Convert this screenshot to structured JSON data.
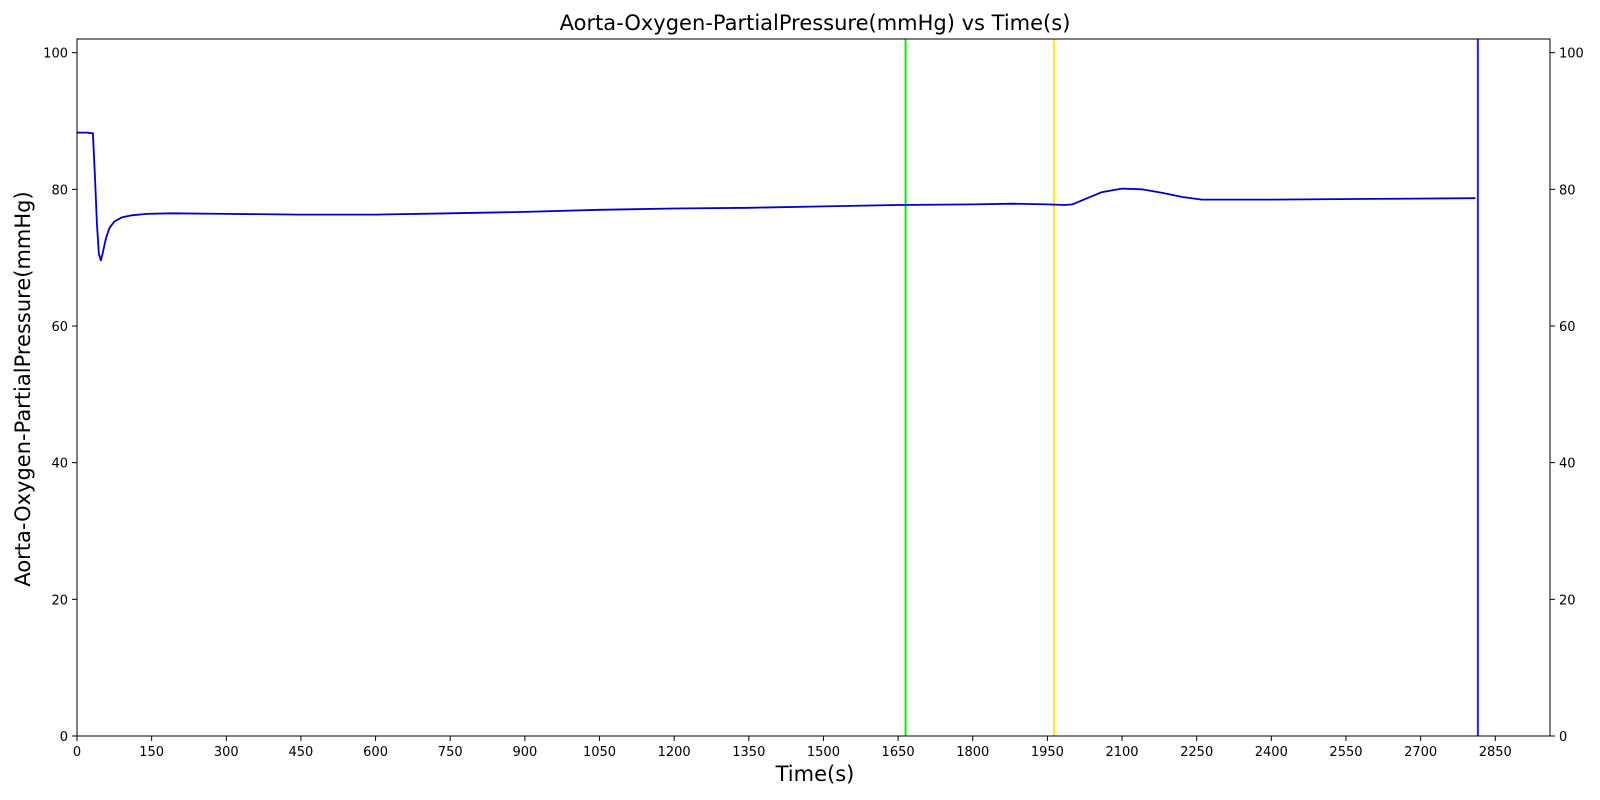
{
  "chart_data": {
    "type": "line",
    "title": "Aorta-Oxygen-PartialPressure(mmHg) vs Time(s)",
    "xlabel": "Time(s)",
    "ylabel": "Aorta-Oxygen-PartialPressure(mmHg)",
    "xlim": [
      0,
      2960
    ],
    "ylim": [
      0,
      102
    ],
    "x_ticks": [
      0,
      150,
      300,
      450,
      600,
      750,
      900,
      1050,
      1200,
      1350,
      1500,
      1650,
      1800,
      1950,
      2100,
      2250,
      2400,
      2550,
      2700,
      2850
    ],
    "y_ticks": [
      0,
      20,
      40,
      60,
      80,
      100
    ],
    "right_y_ticks": [
      0,
      20,
      40,
      60,
      80,
      100
    ],
    "grid": false,
    "series": [
      {
        "color": "#0000cd",
        "x": [
          0,
          20,
          32,
          36,
          40,
          44,
          48,
          52,
          58,
          65,
          75,
          90,
          110,
          140,
          190,
          300,
          450,
          600,
          750,
          900,
          1050,
          1200,
          1350,
          1500,
          1650,
          1800,
          1880,
          1950,
          1985,
          2000,
          2030,
          2060,
          2100,
          2140,
          2180,
          2220,
          2260,
          2400,
          2600,
          2810
        ],
        "y": [
          88.3,
          88.3,
          88.2,
          82.0,
          75.0,
          70.5,
          69.6,
          70.8,
          72.8,
          74.3,
          75.3,
          75.9,
          76.2,
          76.4,
          76.5,
          76.4,
          76.3,
          76.3,
          76.5,
          76.7,
          77.0,
          77.2,
          77.3,
          77.5,
          77.7,
          77.8,
          77.9,
          77.8,
          77.7,
          77.8,
          78.7,
          79.6,
          80.1,
          80.0,
          79.5,
          78.9,
          78.5,
          78.5,
          78.6,
          78.7
        ]
      }
    ],
    "vlines": [
      {
        "x": 1665,
        "color": "#00ee00"
      },
      {
        "x": 1963,
        "color": "#ffee00"
      },
      {
        "x": 2815,
        "color": "#2222dd"
      }
    ]
  }
}
